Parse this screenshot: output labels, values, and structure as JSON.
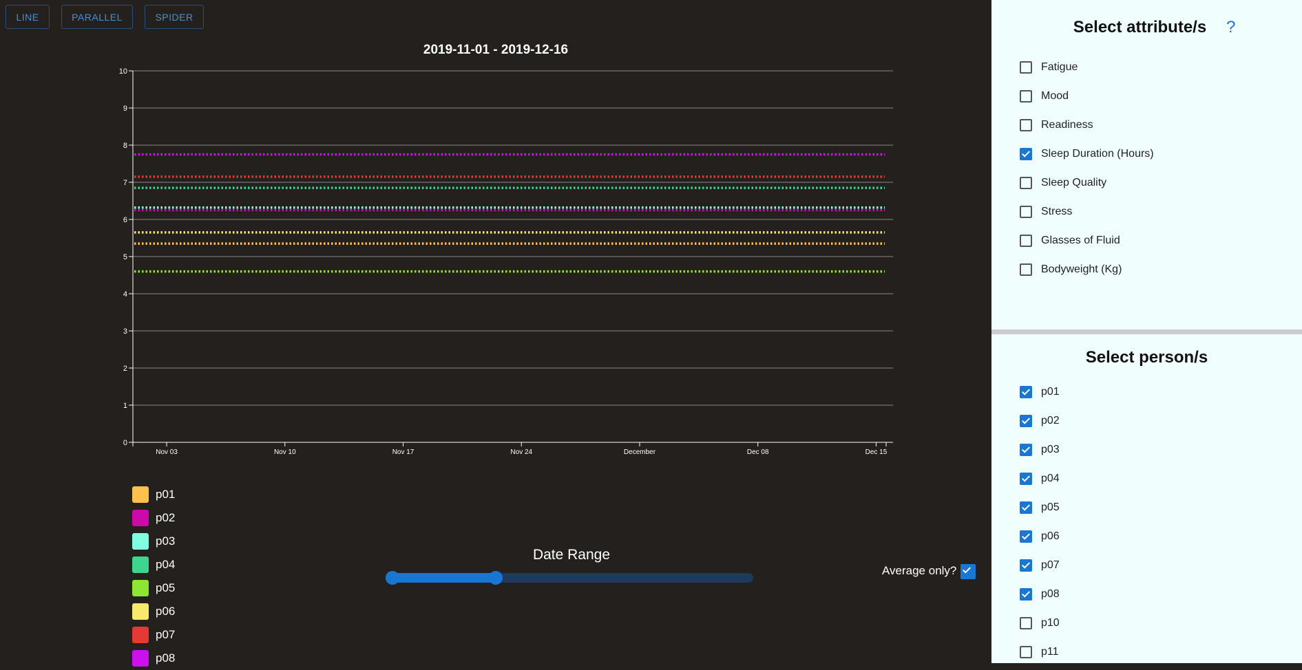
{
  "toolbar": {
    "line_label": "LINE",
    "parallel_label": "PARALLEL",
    "spider_label": "SPIDER"
  },
  "colors": {
    "accent": "#1976d2",
    "background": "#23201d",
    "panel_background": "#f0fffe"
  },
  "attributes_panel": {
    "title": "Select attribute/s",
    "help_icon": "?",
    "items": [
      {
        "label": "Fatigue",
        "checked": false
      },
      {
        "label": "Mood",
        "checked": false
      },
      {
        "label": "Readiness",
        "checked": false
      },
      {
        "label": "Sleep Duration (Hours)",
        "checked": true
      },
      {
        "label": "Sleep Quality",
        "checked": false
      },
      {
        "label": "Stress",
        "checked": false
      },
      {
        "label": "Glasses of Fluid",
        "checked": false
      },
      {
        "label": "Bodyweight (Kg)",
        "checked": false
      }
    ]
  },
  "persons_panel": {
    "title": "Select person/s",
    "items": [
      {
        "label": "p01",
        "checked": true
      },
      {
        "label": "p02",
        "checked": true
      },
      {
        "label": "p03",
        "checked": true
      },
      {
        "label": "p04",
        "checked": true
      },
      {
        "label": "p05",
        "checked": true
      },
      {
        "label": "p06",
        "checked": true
      },
      {
        "label": "p07",
        "checked": true
      },
      {
        "label": "p08",
        "checked": true
      },
      {
        "label": "p10",
        "checked": false
      },
      {
        "label": "p11",
        "checked": false
      }
    ]
  },
  "date_range": {
    "title": "Date Range",
    "start_fraction": 0.0,
    "end_fraction": 0.3
  },
  "average_only": {
    "label": "Average only?",
    "checked": true
  },
  "chart_data": {
    "type": "line",
    "title": "2019-11-01 - 2019-12-16",
    "xlim": [
      "2019-11-01",
      "2019-12-16"
    ],
    "ylim": [
      0,
      10
    ],
    "y_ticks": [
      "0",
      "1",
      "2",
      "3",
      "4",
      "5",
      "6",
      "7",
      "8",
      "9",
      "10"
    ],
    "x_ticks": [
      {
        "date": "2019-11-03",
        "label": "Nov 03"
      },
      {
        "date": "2019-11-10",
        "label": "Nov 10"
      },
      {
        "date": "2019-11-17",
        "label": "Nov 17"
      },
      {
        "date": "2019-11-24",
        "label": "Nov 24"
      },
      {
        "date": "2019-12-01",
        "label": "December"
      },
      {
        "date": "2019-12-08",
        "label": "Dec 08"
      },
      {
        "date": "2019-12-15",
        "label": "Dec 15"
      }
    ],
    "grid": true,
    "line_style": "dotted",
    "legend_position": "bottom-left",
    "series": [
      {
        "name": "p01",
        "color": "#ffc04d",
        "x": [
          "2019-11-01",
          "2019-12-16"
        ],
        "y": [
          5.35,
          5.35
        ]
      },
      {
        "name": "p02",
        "color": "#cc0aaa",
        "x": [
          "2019-11-01",
          "2019-12-16"
        ],
        "y": [
          6.25,
          6.25
        ]
      },
      {
        "name": "p03",
        "color": "#80ffe0",
        "x": [
          "2019-11-01",
          "2019-12-16"
        ],
        "y": [
          6.32,
          6.32
        ]
      },
      {
        "name": "p04",
        "color": "#3dd68c",
        "x": [
          "2019-11-01",
          "2019-12-16"
        ],
        "y": [
          6.85,
          6.85
        ]
      },
      {
        "name": "p05",
        "color": "#8ee534",
        "x": [
          "2019-11-01",
          "2019-12-16"
        ],
        "y": [
          4.6,
          4.6
        ]
      },
      {
        "name": "p06",
        "color": "#f7e96b",
        "x": [
          "2019-11-01",
          "2019-12-16"
        ],
        "y": [
          5.65,
          5.65
        ]
      },
      {
        "name": "p07",
        "color": "#e53935",
        "x": [
          "2019-11-01",
          "2019-12-16"
        ],
        "y": [
          7.15,
          7.15
        ]
      },
      {
        "name": "p08",
        "color": "#cc11ee",
        "x": [
          "2019-11-01",
          "2019-12-16"
        ],
        "y": [
          7.75,
          7.75
        ]
      }
    ]
  }
}
